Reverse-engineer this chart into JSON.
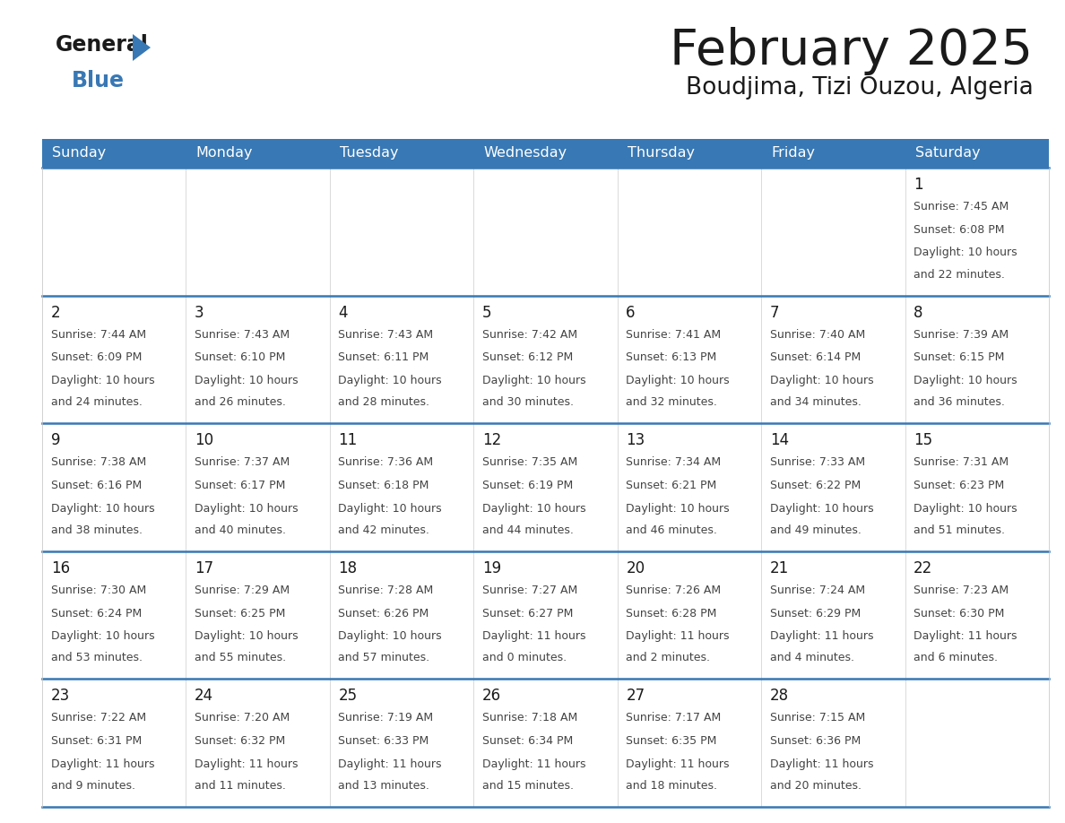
{
  "title": "February 2025",
  "subtitle": "Boudjima, Tizi Ouzou, Algeria",
  "days_of_week": [
    "Sunday",
    "Monday",
    "Tuesday",
    "Wednesday",
    "Thursday",
    "Friday",
    "Saturday"
  ],
  "header_bg": "#3878b4",
  "header_text": "#ffffff",
  "cell_bg": "#ffffff",
  "row_alt_bg": "#f0f4f8",
  "border_color": "#3878b4",
  "title_color": "#1a1a1a",
  "subtitle_color": "#1a1a1a",
  "day_num_color": "#1a1a1a",
  "cell_text_color": "#444444",
  "calendar_data": [
    [
      null,
      null,
      null,
      null,
      null,
      null,
      {
        "day": 1,
        "sunrise": "7:45 AM",
        "sunset": "6:08 PM",
        "daylight_line1": "Daylight: 10 hours",
        "daylight_line2": "and 22 minutes."
      }
    ],
    [
      {
        "day": 2,
        "sunrise": "7:44 AM",
        "sunset": "6:09 PM",
        "daylight_line1": "Daylight: 10 hours",
        "daylight_line2": "and 24 minutes."
      },
      {
        "day": 3,
        "sunrise": "7:43 AM",
        "sunset": "6:10 PM",
        "daylight_line1": "Daylight: 10 hours",
        "daylight_line2": "and 26 minutes."
      },
      {
        "day": 4,
        "sunrise": "7:43 AM",
        "sunset": "6:11 PM",
        "daylight_line1": "Daylight: 10 hours",
        "daylight_line2": "and 28 minutes."
      },
      {
        "day": 5,
        "sunrise": "7:42 AM",
        "sunset": "6:12 PM",
        "daylight_line1": "Daylight: 10 hours",
        "daylight_line2": "and 30 minutes."
      },
      {
        "day": 6,
        "sunrise": "7:41 AM",
        "sunset": "6:13 PM",
        "daylight_line1": "Daylight: 10 hours",
        "daylight_line2": "and 32 minutes."
      },
      {
        "day": 7,
        "sunrise": "7:40 AM",
        "sunset": "6:14 PM",
        "daylight_line1": "Daylight: 10 hours",
        "daylight_line2": "and 34 minutes."
      },
      {
        "day": 8,
        "sunrise": "7:39 AM",
        "sunset": "6:15 PM",
        "daylight_line1": "Daylight: 10 hours",
        "daylight_line2": "and 36 minutes."
      }
    ],
    [
      {
        "day": 9,
        "sunrise": "7:38 AM",
        "sunset": "6:16 PM",
        "daylight_line1": "Daylight: 10 hours",
        "daylight_line2": "and 38 minutes."
      },
      {
        "day": 10,
        "sunrise": "7:37 AM",
        "sunset": "6:17 PM",
        "daylight_line1": "Daylight: 10 hours",
        "daylight_line2": "and 40 minutes."
      },
      {
        "day": 11,
        "sunrise": "7:36 AM",
        "sunset": "6:18 PM",
        "daylight_line1": "Daylight: 10 hours",
        "daylight_line2": "and 42 minutes."
      },
      {
        "day": 12,
        "sunrise": "7:35 AM",
        "sunset": "6:19 PM",
        "daylight_line1": "Daylight: 10 hours",
        "daylight_line2": "and 44 minutes."
      },
      {
        "day": 13,
        "sunrise": "7:34 AM",
        "sunset": "6:21 PM",
        "daylight_line1": "Daylight: 10 hours",
        "daylight_line2": "and 46 minutes."
      },
      {
        "day": 14,
        "sunrise": "7:33 AM",
        "sunset": "6:22 PM",
        "daylight_line1": "Daylight: 10 hours",
        "daylight_line2": "and 49 minutes."
      },
      {
        "day": 15,
        "sunrise": "7:31 AM",
        "sunset": "6:23 PM",
        "daylight_line1": "Daylight: 10 hours",
        "daylight_line2": "and 51 minutes."
      }
    ],
    [
      {
        "day": 16,
        "sunrise": "7:30 AM",
        "sunset": "6:24 PM",
        "daylight_line1": "Daylight: 10 hours",
        "daylight_line2": "and 53 minutes."
      },
      {
        "day": 17,
        "sunrise": "7:29 AM",
        "sunset": "6:25 PM",
        "daylight_line1": "Daylight: 10 hours",
        "daylight_line2": "and 55 minutes."
      },
      {
        "day": 18,
        "sunrise": "7:28 AM",
        "sunset": "6:26 PM",
        "daylight_line1": "Daylight: 10 hours",
        "daylight_line2": "and 57 minutes."
      },
      {
        "day": 19,
        "sunrise": "7:27 AM",
        "sunset": "6:27 PM",
        "daylight_line1": "Daylight: 11 hours",
        "daylight_line2": "and 0 minutes."
      },
      {
        "day": 20,
        "sunrise": "7:26 AM",
        "sunset": "6:28 PM",
        "daylight_line1": "Daylight: 11 hours",
        "daylight_line2": "and 2 minutes."
      },
      {
        "day": 21,
        "sunrise": "7:24 AM",
        "sunset": "6:29 PM",
        "daylight_line1": "Daylight: 11 hours",
        "daylight_line2": "and 4 minutes."
      },
      {
        "day": 22,
        "sunrise": "7:23 AM",
        "sunset": "6:30 PM",
        "daylight_line1": "Daylight: 11 hours",
        "daylight_line2": "and 6 minutes."
      }
    ],
    [
      {
        "day": 23,
        "sunrise": "7:22 AM",
        "sunset": "6:31 PM",
        "daylight_line1": "Daylight: 11 hours",
        "daylight_line2": "and 9 minutes."
      },
      {
        "day": 24,
        "sunrise": "7:20 AM",
        "sunset": "6:32 PM",
        "daylight_line1": "Daylight: 11 hours",
        "daylight_line2": "and 11 minutes."
      },
      {
        "day": 25,
        "sunrise": "7:19 AM",
        "sunset": "6:33 PM",
        "daylight_line1": "Daylight: 11 hours",
        "daylight_line2": "and 13 minutes."
      },
      {
        "day": 26,
        "sunrise": "7:18 AM",
        "sunset": "6:34 PM",
        "daylight_line1": "Daylight: 11 hours",
        "daylight_line2": "and 15 minutes."
      },
      {
        "day": 27,
        "sunrise": "7:17 AM",
        "sunset": "6:35 PM",
        "daylight_line1": "Daylight: 11 hours",
        "daylight_line2": "and 18 minutes."
      },
      {
        "day": 28,
        "sunrise": "7:15 AM",
        "sunset": "6:36 PM",
        "daylight_line1": "Daylight: 11 hours",
        "daylight_line2": "and 20 minutes."
      },
      null
    ]
  ]
}
